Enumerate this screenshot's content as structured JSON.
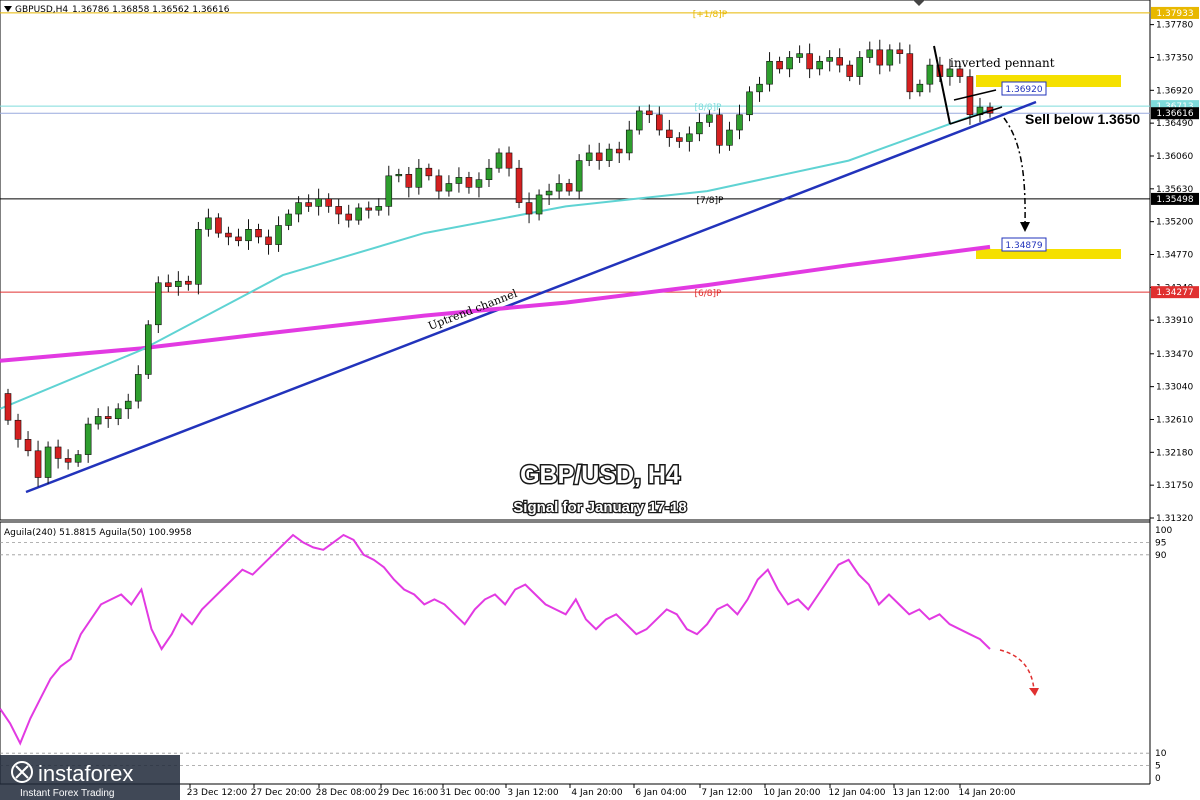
{
  "header": {
    "symbol_timeframe": "GBPUSD,H4",
    "ohlc": "1.36786 1.36858 1.36562 1.36616"
  },
  "indicator_header": {
    "text": "Aguila(240) 51.8815  Aguila(50) 100.9958"
  },
  "overlay": {
    "title": "GBP/USD, H4",
    "subtitle": "Signal for January 17-18",
    "pattern_label": "inverted pennant",
    "sell_label": "Sell below 1.3650",
    "channel_label": "Uptrend channel"
  },
  "levels": {
    "plus1": {
      "label": "[+1/8]P",
      "value": 1.37933,
      "price_tag": "1.37933",
      "color": "#e8b800"
    },
    "eight": {
      "label": "[8/8]P",
      "value": 1.36713,
      "price_tag": "1.36713",
      "color": "#7fdcdc"
    },
    "seven": {
      "label": "[7/8]P",
      "value": 1.35498,
      "price_tag": "1.35498",
      "color": "#000000"
    },
    "six": {
      "label": "[6/8]P",
      "value": 1.34277,
      "price_tag": "1.34277",
      "color": "#e03030"
    }
  },
  "target_boxes": {
    "upper": {
      "price_tag": "1.36920",
      "value": 1.3692
    },
    "lower": {
      "price_tag": "1.34879",
      "value": 1.34879
    }
  },
  "current_price_tag": "1.36616",
  "colors": {
    "bull": "#2e9e2e",
    "bear": "#d42020",
    "ma_slow": "#e23ae2",
    "ma_fast": "#5fd3d3",
    "trendline": "#2233bb",
    "yellow_box": "#f5e000"
  },
  "watermark": {
    "brand": "instaforex",
    "tagline": "Instant Forex Trading"
  },
  "chart_data": {
    "type": "candlestick",
    "symbol": "GBPUSD",
    "timeframe": "H4",
    "ylim": [
      1.3132,
      1.3805
    ],
    "price_axis_ticks": [
      "1.37780",
      "1.37350",
      "1.36920",
      "1.36490",
      "1.36060",
      "1.35630",
      "1.35200",
      "1.34770",
      "1.34340",
      "1.33910",
      "1.33470",
      "1.33040",
      "1.32610",
      "1.32180",
      "1.31750",
      "1.31320"
    ],
    "x_labels": [
      "23 Dec 12:00",
      "27 Dec 20:00",
      "28 Dec 08:00",
      "29 Dec 16:00",
      "31 Dec 00:00",
      "3 Jan 12:00",
      "4 Jan 20:00",
      "6 Jan 04:00",
      "7 Jan 12:00",
      "10 Jan 20:00",
      "12 Jan 04:00",
      "13 Jan 12:00",
      "14 Jan 20:00"
    ],
    "closes": [
      1.326,
      1.3235,
      1.322,
      1.3185,
      1.3225,
      1.321,
      1.3205,
      1.3215,
      1.3255,
      1.3265,
      1.3262,
      1.3275,
      1.3285,
      1.332,
      1.3385,
      1.344,
      1.3435,
      1.3442,
      1.3438,
      1.351,
      1.3525,
      1.3505,
      1.35,
      1.3495,
      1.351,
      1.35,
      1.349,
      1.3515,
      1.353,
      1.3545,
      1.354,
      1.355,
      1.354,
      1.353,
      1.3522,
      1.3538,
      1.3535,
      1.354,
      1.358,
      1.3582,
      1.3565,
      1.359,
      1.358,
      1.356,
      1.357,
      1.3578,
      1.3565,
      1.3575,
      1.359,
      1.361,
      1.359,
      1.3545,
      1.353,
      1.3555,
      1.356,
      1.357,
      1.356,
      1.36,
      1.361,
      1.36,
      1.3615,
      1.361,
      1.364,
      1.3665,
      1.366,
      1.364,
      1.363,
      1.3625,
      1.3635,
      1.365,
      1.366,
      1.362,
      1.364,
      1.366,
      1.369,
      1.37,
      1.373,
      1.372,
      1.3735,
      1.374,
      1.372,
      1.373,
      1.3735,
      1.3725,
      1.371,
      1.3735,
      1.3745,
      1.3725,
      1.3745,
      1.374,
      1.369,
      1.37,
      1.3725,
      1.371,
      1.372,
      1.371,
      1.366,
      1.367,
      1.3662
    ],
    "ma_slow": [
      1.3338,
      1.3354,
      1.3376,
      1.3397,
      1.3414,
      1.3437,
      1.3463,
      1.3487
    ],
    "ma_fast": [
      1.3275,
      1.3352,
      1.345,
      1.3505,
      1.354,
      1.356,
      1.36,
      1.3667
    ],
    "oscillator": {
      "name": "Aguila",
      "values": [
        28,
        22,
        14,
        24,
        32,
        40,
        45,
        48,
        58,
        64,
        70,
        72,
        74,
        70,
        76,
        60,
        52,
        58,
        66,
        62,
        68,
        72,
        76,
        80,
        84,
        82,
        86,
        90,
        94,
        98,
        95,
        93,
        92,
        95,
        98,
        96,
        90,
        88,
        85,
        80,
        76,
        74,
        70,
        72,
        70,
        66,
        62,
        68,
        72,
        74,
        70,
        76,
        78,
        74,
        70,
        68,
        66,
        72,
        64,
        60,
        64,
        66,
        62,
        58,
        60,
        64,
        68,
        66,
        60,
        58,
        62,
        68,
        70,
        66,
        72,
        80,
        84,
        76,
        70,
        72,
        68,
        74,
        80,
        86,
        88,
        82,
        78,
        70,
        74,
        70,
        66,
        68,
        64,
        66,
        62,
        60,
        58,
        56,
        52
      ],
      "ticks": [
        "100",
        "95",
        "90",
        "10",
        "5",
        "0"
      ],
      "ylim": [
        0,
        100
      ]
    }
  }
}
